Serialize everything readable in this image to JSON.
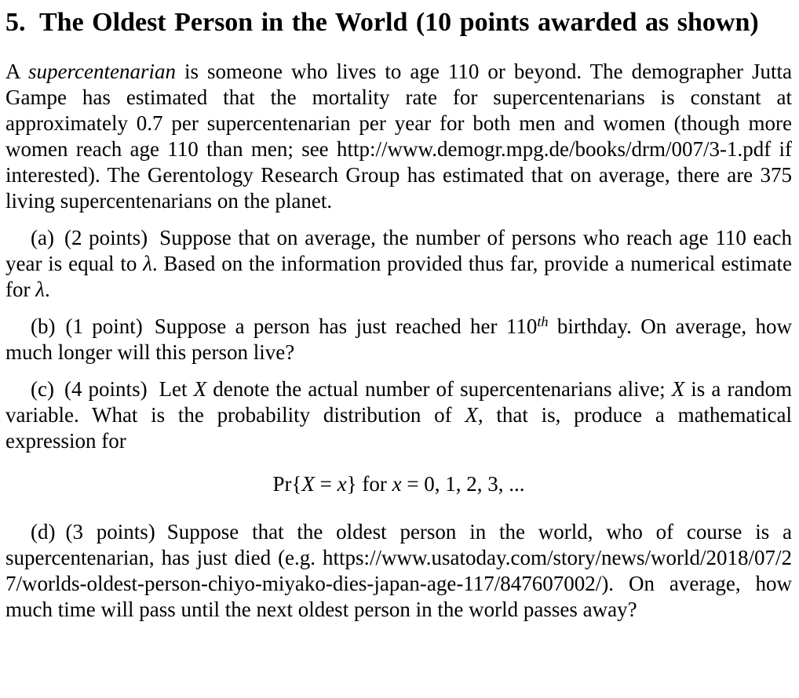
{
  "colors": {
    "background": "#ffffff",
    "text": "#000000"
  },
  "heading": {
    "number": "5.",
    "title": "The Oldest Person in the World (10 points awarded as shown)"
  },
  "intro": {
    "segments": [
      {
        "text": "A ",
        "style": "normal"
      },
      {
        "text": "supercentenarian",
        "style": "italic"
      },
      {
        "text": " is someone who lives to age 110 or beyond. The demographer Jutta Gampe has estimated that the mortality rate for supercentenarians is constant at approximately 0.7 per supercentenarian per year for both men and women (though more women reach age 110 than men; see ",
        "style": "normal"
      },
      {
        "text": "http://www.demogr.mpg.de/books/drm/007/3-1.pdf",
        "style": "url"
      },
      {
        "text": " if interested). The Gerentology Research Group has estimated that on average, there are 375 living supercentenarians on the planet.",
        "style": "normal"
      }
    ]
  },
  "parts": {
    "a": {
      "label": "(a)",
      "points": "(2 points)",
      "segments": [
        {
          "text": "Suppose that on average, the number of persons who reach age 110 each year is equal to ",
          "style": "normal"
        },
        {
          "text": "λ",
          "style": "italic"
        },
        {
          "text": ". Based on the information provided thus far, provide a numerical estimate for ",
          "style": "normal"
        },
        {
          "text": "λ",
          "style": "italic"
        },
        {
          "text": ".",
          "style": "normal"
        }
      ]
    },
    "b": {
      "label": "(b)",
      "points": "(1 point)",
      "segments": [
        {
          "text": "Suppose a person has just reached her 110",
          "style": "normal"
        },
        {
          "text": "th",
          "style": "superscript-italic"
        },
        {
          "text": " birthday. On average, how much longer will this person live?",
          "style": "normal"
        }
      ]
    },
    "c": {
      "label": "(c)",
      "points": "(4 points)",
      "segments": [
        {
          "text": "Let ",
          "style": "normal"
        },
        {
          "text": "X",
          "style": "italic"
        },
        {
          "text": " denote the actual number of supercentenarians alive; ",
          "style": "normal"
        },
        {
          "text": "X",
          "style": "italic"
        },
        {
          "text": " is a random variable. What is the probability distribution of ",
          "style": "normal"
        },
        {
          "text": "X",
          "style": "italic"
        },
        {
          "text": ", that is, produce a mathematical expression for",
          "style": "normal"
        }
      ]
    },
    "d": {
      "label": "(d)",
      "points": "(3 points)",
      "segments": [
        {
          "text": "Suppose that the oldest person in the world, who of course is a supercentenarian, has just died (e.g. ",
          "style": "normal"
        },
        {
          "text": "https://www.usatoday.com/story/news/world/2018/07/27/worlds-oldest-person-chiyo-miyako-dies-japan-age-117/847607002/",
          "style": "url"
        },
        {
          "text": "). On average, how much time will pass until the next oldest person in the world passes away?",
          "style": "normal"
        }
      ]
    }
  },
  "equation": {
    "segments": [
      {
        "text": "Pr{",
        "style": "normal"
      },
      {
        "text": "X",
        "style": "italic"
      },
      {
        "text": " = ",
        "style": "normal"
      },
      {
        "text": "x",
        "style": "italic"
      },
      {
        "text": "} for ",
        "style": "normal"
      },
      {
        "text": "x",
        "style": "italic"
      },
      {
        "text": " = 0, 1, 2, 3, ...",
        "style": "normal"
      }
    ]
  }
}
